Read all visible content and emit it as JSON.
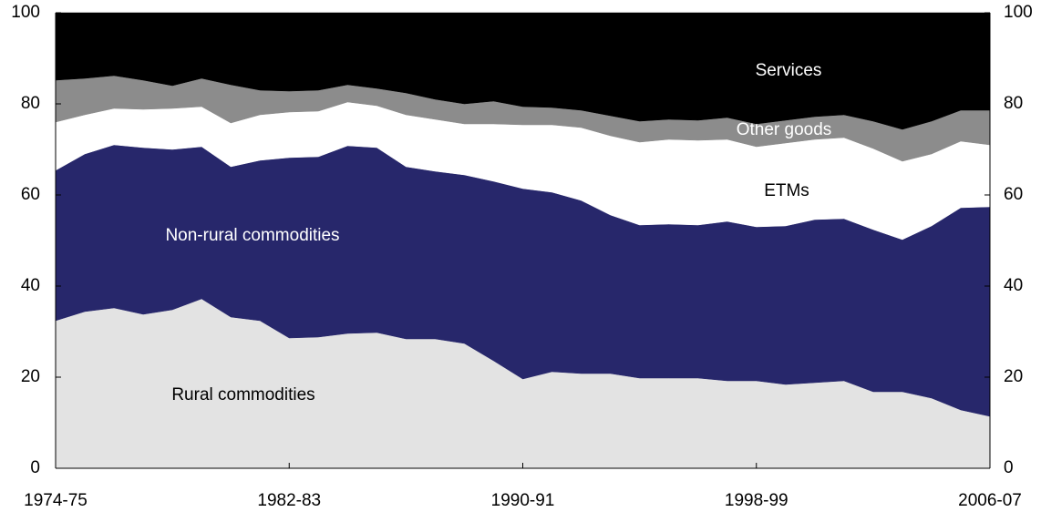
{
  "chart_data": {
    "type": "stacked-area",
    "categories": [
      "1974-75",
      null,
      null,
      null,
      null,
      null,
      null,
      null,
      "1982-83",
      null,
      null,
      null,
      null,
      null,
      null,
      null,
      "1990-91",
      null,
      null,
      null,
      null,
      null,
      null,
      null,
      "1998-99",
      null,
      null,
      null,
      null,
      null,
      null,
      null,
      "2006-07"
    ],
    "series": [
      {
        "name": "Rural commodities",
        "color": "#e3e3e3",
        "values": [
          32.4,
          34.4,
          35.2,
          33.8,
          34.8,
          37.2,
          33.2,
          32.4,
          28.6,
          28.8,
          29.6,
          29.8,
          28.4,
          28.4,
          27.4,
          23.6,
          19.6,
          21.2,
          20.8,
          20.8,
          19.8,
          19.8,
          19.8,
          19.2,
          19.2,
          18.4,
          18.8,
          19.2,
          16.8,
          16.8,
          15.4,
          12.8,
          11.4
        ]
      },
      {
        "name": "Non-rural commodities",
        "color": "#27276b",
        "values": [
          33.0,
          34.6,
          35.8,
          36.6,
          35.2,
          33.4,
          33.0,
          35.2,
          39.6,
          39.6,
          41.2,
          40.6,
          37.8,
          36.8,
          37.0,
          39.4,
          41.8,
          39.4,
          38.0,
          34.8,
          33.6,
          33.8,
          33.6,
          35.0,
          33.8,
          34.8,
          35.8,
          35.6,
          35.6,
          33.4,
          37.8,
          44.4,
          46.0
        ]
      },
      {
        "name": "ETMs",
        "color": "#ffffff",
        "values": [
          10.6,
          8.6,
          8.0,
          8.4,
          9.0,
          8.8,
          9.6,
          10.0,
          10.0,
          10.0,
          9.6,
          9.2,
          11.4,
          11.4,
          11.2,
          12.6,
          14.0,
          14.8,
          16.0,
          17.4,
          18.2,
          18.6,
          18.6,
          18.0,
          17.6,
          18.2,
          17.6,
          17.8,
          17.8,
          17.2,
          15.8,
          14.6,
          13.6
        ]
      },
      {
        "name": "Other goods",
        "color": "#8c8c8c",
        "values": [
          9.2,
          8.0,
          7.2,
          6.4,
          5.0,
          6.2,
          8.4,
          5.4,
          4.6,
          4.6,
          3.8,
          3.8,
          4.8,
          4.4,
          4.4,
          5.0,
          4.0,
          3.8,
          3.8,
          4.4,
          4.6,
          4.4,
          4.4,
          4.8,
          5.0,
          5.0,
          5.0,
          5.0,
          6.0,
          7.0,
          7.2,
          6.8,
          7.6
        ]
      },
      {
        "name": "Services",
        "color": "#000000",
        "values": [
          14.8,
          14.4,
          13.8,
          14.8,
          16.0,
          14.4,
          15.8,
          17.0,
          17.2,
          17.0,
          15.8,
          16.6,
          17.6,
          19.0,
          20.0,
          19.4,
          20.6,
          20.8,
          21.4,
          22.6,
          23.8,
          23.4,
          23.6,
          23.0,
          24.4,
          23.6,
          22.8,
          22.4,
          23.8,
          25.6,
          23.8,
          21.4,
          21.4
        ]
      }
    ],
    "ylim": [
      0,
      100
    ],
    "yticks": [
      0,
      20,
      40,
      60,
      80,
      100
    ],
    "y2lim": [
      0,
      100
    ],
    "y2ticks": [
      0,
      20,
      40,
      60,
      80,
      100
    ]
  }
}
